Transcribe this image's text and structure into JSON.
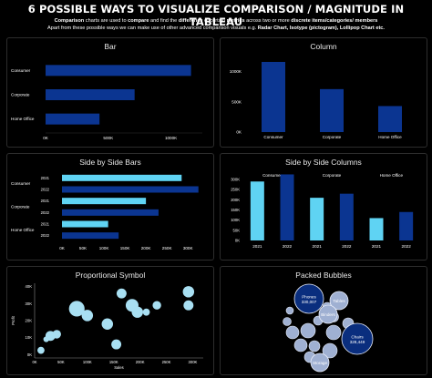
{
  "title": "6 POSSIBLE WAYS TO VISUALIZE COMPARISON / MAGNITUDE IN TABLEAU",
  "subtitle_line1": [
    {
      "text": "Comparison",
      "bold": true
    },
    {
      "text": " charts are used to ",
      "bold": false
    },
    {
      "text": "compare",
      "bold": true
    },
    {
      "text": " and find the ",
      "bold": false
    },
    {
      "text": "difference",
      "bold": true
    },
    {
      "text": " of certain ",
      "bold": false
    },
    {
      "text": "metrics",
      "bold": true
    },
    {
      "text": " across two or more ",
      "bold": false
    },
    {
      "text": "discrete items/categories/ members",
      "bold": true
    }
  ],
  "subtitle_line2": [
    {
      "text": "Apart from these possible ways we can make use of other advanced comparison visuals e.g. ",
      "bold": false
    },
    {
      "text": "Radar Chart, Isotype (pictogram), Lollipop Chart etc.",
      "bold": true
    }
  ],
  "colors": {
    "dark_bar": "#0b3591",
    "light_bar": "#5fd3f3",
    "bubble_fill": "#a8dff2",
    "packed_light": "#9fb0d2",
    "packed_dark": "#0a2e7e",
    "axis": "#8a8a8a",
    "text": "#ffffff"
  },
  "chart_data": [
    {
      "type": "bar",
      "title": "Bar",
      "categories": [
        "Consumer",
        "Corporate",
        "Home Office"
      ],
      "values": [
        1160000,
        710000,
        430000
      ],
      "xticks": [
        "0K",
        "500K",
        "1000K"
      ],
      "xtick_values": [
        0,
        500000,
        1000000
      ],
      "xlim": [
        0,
        1250000
      ]
    },
    {
      "type": "bar",
      "title": "Column",
      "categories": [
        "Consumer",
        "Corporate",
        "Home Office"
      ],
      "values": [
        1160000,
        710000,
        430000
      ],
      "yticks": [
        "0K",
        "500K",
        "1000K"
      ],
      "ytick_values": [
        0,
        500000,
        1000000
      ],
      "ylim": [
        0,
        1250000
      ]
    },
    {
      "type": "bar",
      "title": "Side by Side Bars",
      "categories": [
        "Consumer",
        "Corporate",
        "Home Office"
      ],
      "years": [
        "2021",
        "2022"
      ],
      "series": [
        {
          "name": "2021",
          "values": [
            285000,
            200000,
            110000
          ]
        },
        {
          "name": "2022",
          "values": [
            325000,
            230000,
            135000
          ]
        }
      ],
      "xticks": [
        "0K",
        "50K",
        "100K",
        "150K",
        "200K",
        "250K",
        "300K"
      ],
      "xtick_values": [
        0,
        50000,
        100000,
        150000,
        200000,
        250000,
        300000
      ],
      "xlim": [
        0,
        330000
      ]
    },
    {
      "type": "bar",
      "title": "Side by Side Columns",
      "categories": [
        "Consumer",
        "Corporate",
        "Home Office"
      ],
      "years": [
        "2021",
        "2022"
      ],
      "series": [
        {
          "name": "2021",
          "values": [
            290000,
            210000,
            110000
          ]
        },
        {
          "name": "2022",
          "values": [
            325000,
            230000,
            140000
          ]
        }
      ],
      "yticks": [
        "0K",
        "50K",
        "100K",
        "150K",
        "200K",
        "250K",
        "300K"
      ],
      "ytick_values": [
        0,
        50000,
        100000,
        150000,
        200000,
        250000,
        300000
      ],
      "ylim": [
        0,
        345000
      ]
    },
    {
      "type": "scatter",
      "title": "Proportional Symbol",
      "xlabel": "Sales",
      "ylabel": "Profit",
      "xticks": [
        "0K",
        "50K",
        "100K",
        "150K",
        "200K",
        "250K",
        "300K"
      ],
      "xtick_values": [
        0,
        50000,
        100000,
        150000,
        200000,
        250000,
        300000
      ],
      "yticks": [
        "0K",
        "10K",
        "20K",
        "30K",
        "40K"
      ],
      "ytick_values": [
        0,
        10000,
        20000,
        30000,
        40000
      ],
      "xlim": [
        0,
        320000
      ],
      "ylim": [
        -2000,
        42000
      ],
      "points": [
        {
          "x": 12000,
          "y": 2500,
          "size": 5
        },
        {
          "x": 22000,
          "y": 9000,
          "size": 4
        },
        {
          "x": 30000,
          "y": 11000,
          "size": 7
        },
        {
          "x": 42000,
          "y": 12000,
          "size": 6
        },
        {
          "x": 80000,
          "y": 27000,
          "size": 11
        },
        {
          "x": 100000,
          "y": 23000,
          "size": 8
        },
        {
          "x": 138000,
          "y": 18000,
          "size": 8
        },
        {
          "x": 155000,
          "y": 6000,
          "size": 7
        },
        {
          "x": 165000,
          "y": 36000,
          "size": 7
        },
        {
          "x": 185000,
          "y": 29000,
          "size": 9
        },
        {
          "x": 195000,
          "y": 25000,
          "size": 8
        },
        {
          "x": 212000,
          "y": 25000,
          "size": 5
        },
        {
          "x": 232000,
          "y": 29000,
          "size": 6
        },
        {
          "x": 292000,
          "y": 37000,
          "size": 8
        },
        {
          "x": 292000,
          "y": 29000,
          "size": 7
        }
      ]
    },
    {
      "type": "bubble",
      "title": "Packed Bubbles",
      "labeled": [
        {
          "label": "Phones",
          "value": "330,007"
        },
        {
          "label": "Tables",
          "value": ""
        },
        {
          "label": "Binders",
          "value": ""
        },
        {
          "label": "Chairs",
          "value": "328,449"
        },
        {
          "label": "Storage",
          "value": ""
        }
      ]
    }
  ]
}
